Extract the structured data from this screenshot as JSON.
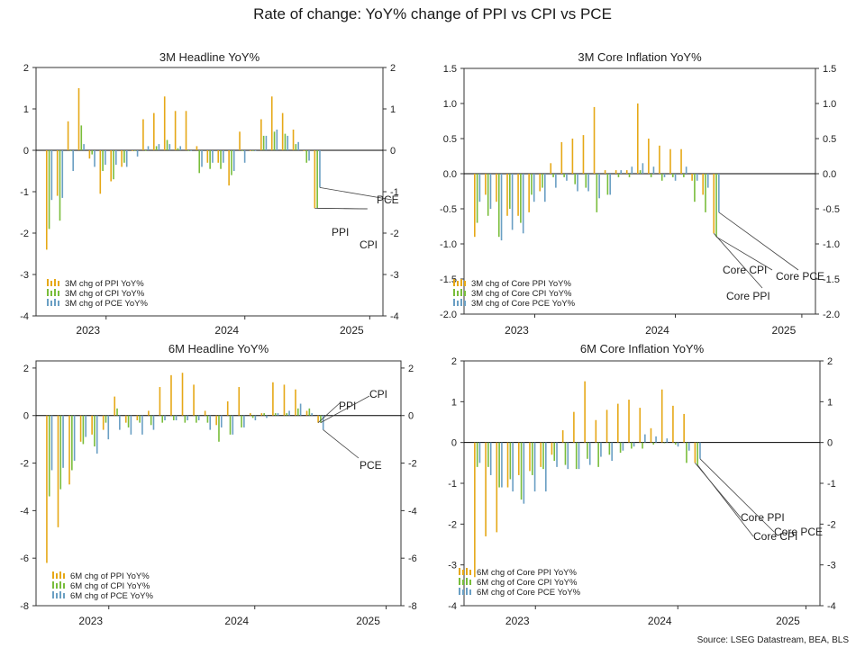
{
  "title": "Rate of change: YoY% change of PPI vs CPI vs PCE",
  "source": "Source: LSEG Datastream, BEA, BLS",
  "colors": {
    "ppi": "#e6a817",
    "cpi": "#79bd3b",
    "pce": "#6a9fc4",
    "axis": "#333333"
  },
  "chart_data": [
    {
      "type": "bar",
      "title": "3M Headline YoY%",
      "ylim": [
        -4,
        2
      ],
      "yticks": [
        2,
        1,
        0,
        -1,
        -2,
        -3,
        -4
      ],
      "ytick_labels": [
        "2",
        "1",
        "0",
        "-1",
        "-2",
        "-3",
        "-4"
      ],
      "xlabels": [
        "2023",
        "2024",
        "2025"
      ],
      "categories": [
        "Oct-22",
        "Nov-22",
        "Dec-22",
        "Jan-23",
        "Feb-23",
        "Mar-23",
        "Apr-23",
        "May-23",
        "Jun-23",
        "Jul-23",
        "Aug-23",
        "Sep-23",
        "Oct-23",
        "Nov-23",
        "Dec-23",
        "Jan-24",
        "Feb-24",
        "Mar-24",
        "Apr-24",
        "May-24",
        "Jun-24",
        "Jul-24",
        "Aug-24",
        "Sep-24",
        "Oct-24",
        "Nov-24",
        "Dec-24",
        "Jan-25",
        "Feb-25",
        "Mar-25",
        "Apr-25"
      ],
      "series": [
        {
          "name": "3M chg of PPI YoY%",
          "values": [
            -2.4,
            -1.1,
            0.7,
            1.5,
            -0.2,
            -1.05,
            -0.75,
            -0.4,
            0,
            0.75,
            0.9,
            1.3,
            0.95,
            0.95,
            0.1,
            -0.3,
            -0.3,
            -0.85,
            0.45,
            0,
            0.75,
            1.3,
            0.9,
            0.5,
            0,
            -1.4,
            null,
            null,
            null,
            null,
            null
          ]
        },
        {
          "name": "3M chg of CPI YoY%",
          "values": [
            -1.9,
            -1.7,
            0,
            0.6,
            -0.1,
            -0.5,
            -0.7,
            -0.3,
            0,
            0,
            0.1,
            0.25,
            0.05,
            0,
            -0.55,
            -0.45,
            -0.45,
            -0.6,
            0,
            0,
            0.35,
            0.45,
            0.4,
            0.15,
            -0.3,
            -1.4,
            null,
            null,
            null,
            null,
            null
          ]
        },
        {
          "name": "3M chg of PCE YoY%",
          "values": [
            -1.2,
            -1.15,
            -0.5,
            0.15,
            -0.4,
            -0.35,
            -0.35,
            -0.4,
            -0.15,
            0.1,
            0.15,
            0.15,
            0.1,
            0,
            -0.4,
            -0.3,
            -0.3,
            -0.5,
            -0.3,
            0,
            0.35,
            0.5,
            0.35,
            0.2,
            -0.25,
            -0.9,
            null,
            null,
            null,
            null,
            null
          ]
        }
      ],
      "annotations": [
        {
          "text": "PCE",
          "series": "3M chg of PCE YoY%",
          "index": 25
        },
        {
          "text": "PPI",
          "series": "3M chg of PPI YoY%",
          "index": 25
        },
        {
          "text": "CPI",
          "series": "3M chg of CPI YoY%",
          "index": 25
        }
      ]
    },
    {
      "type": "bar",
      "title": "3M Core Inflation YoY%",
      "ylim": [
        -2,
        1.5
      ],
      "yticks": [
        1.5,
        1,
        0.5,
        0,
        -0.5,
        -1,
        -1.5,
        -2
      ],
      "ytick_labels": [
        "1.5",
        "1.0",
        "0.5",
        "0.0",
        "-0.5",
        "-1.0",
        "-1.5",
        "-2.0"
      ],
      "xlabels": [
        "2023",
        "2024",
        "2025"
      ],
      "categories": [
        "Oct-22",
        "Nov-22",
        "Dec-22",
        "Jan-23",
        "Feb-23",
        "Mar-23",
        "Apr-23",
        "May-23",
        "Jun-23",
        "Jul-23",
        "Aug-23",
        "Sep-23",
        "Oct-23",
        "Nov-23",
        "Dec-23",
        "Jan-24",
        "Feb-24",
        "Mar-24",
        "Apr-24",
        "May-24",
        "Jun-24",
        "Jul-24",
        "Aug-24",
        "Sep-24",
        "Oct-24",
        "Nov-24",
        "Dec-24",
        "Jan-25",
        "Feb-25",
        "Mar-25",
        "Apr-25"
      ],
      "series": [
        {
          "name": "3M chg of Core PPI YoY%",
          "values": [
            -0.9,
            -0.3,
            -0.4,
            -0.6,
            -0.6,
            -0.55,
            -0.25,
            0.15,
            0.45,
            0.5,
            0.55,
            0.95,
            0.05,
            0.05,
            0.05,
            1.0,
            0.5,
            0.4,
            0.35,
            0.35,
            -0.1,
            -0.3,
            -0.85,
            null,
            null,
            null,
            null,
            null,
            null,
            null,
            null
          ]
        },
        {
          "name": "3M chg of Core CPI YoY%",
          "values": [
            -0.7,
            -0.6,
            -0.9,
            -0.5,
            -0.7,
            -0.3,
            -0.2,
            -0.05,
            -0.05,
            -0.15,
            -0.2,
            -0.55,
            -0.3,
            -0.05,
            -0.05,
            0.05,
            -0.05,
            -0.1,
            -0.05,
            -0.05,
            -0.4,
            -0.55,
            -0.9,
            null,
            null,
            null,
            null,
            null,
            null,
            null,
            null
          ]
        },
        {
          "name": "3M chg of Core PCE YoY%",
          "values": [
            -0.4,
            -0.5,
            -0.95,
            -0.8,
            -0.85,
            -0.4,
            -0.4,
            -0.2,
            -0.1,
            -0.25,
            -0.25,
            -0.35,
            -0.3,
            0.05,
            0.1,
            0.15,
            0.1,
            -0.05,
            -0.1,
            0.1,
            -0.1,
            -0.2,
            -0.55,
            null,
            null,
            null,
            null,
            null,
            null,
            null,
            null
          ]
        }
      ],
      "annotations": [
        {
          "text": "Core CPI",
          "series": "3M chg of Core CPI YoY%",
          "index": 22
        },
        {
          "text": "Core PCE",
          "series": "3M chg of Core PCE YoY%",
          "index": 22
        },
        {
          "text": "Core PPI",
          "series": "3M chg of Core PPI YoY%",
          "index": 22
        }
      ]
    },
    {
      "type": "bar",
      "title": "6M Headline YoY%",
      "ylim": [
        -8,
        2.3
      ],
      "yticks": [
        2,
        0,
        -2,
        -4,
        -6,
        -8
      ],
      "ytick_labels": [
        "2",
        "0",
        "-2",
        "-4",
        "-6",
        "-8"
      ],
      "xlabels": [
        "2023",
        "2024",
        "2025"
      ],
      "categories": [
        "Oct-22",
        "Nov-22",
        "Dec-22",
        "Jan-23",
        "Feb-23",
        "Mar-23",
        "Apr-23",
        "May-23",
        "Jun-23",
        "Jul-23",
        "Aug-23",
        "Sep-23",
        "Oct-23",
        "Nov-23",
        "Dec-23",
        "Jan-24",
        "Feb-24",
        "Mar-24",
        "Apr-24",
        "May-24",
        "Jun-24",
        "Jul-24",
        "Aug-24",
        "Sep-24",
        "Oct-24",
        "Nov-24",
        "Dec-24",
        "Jan-25",
        "Feb-25",
        "Mar-25",
        "Apr-25"
      ],
      "series": [
        {
          "name": "6M chg of PPI YoY%",
          "values": [
            -6.2,
            -4.7,
            -2.9,
            -1.1,
            -0.8,
            -0.6,
            0.8,
            -0.3,
            -0.2,
            0.2,
            1.2,
            1.7,
            1.8,
            1.3,
            0.2,
            -0.4,
            0.6,
            1.2,
            0.1,
            0.1,
            1.4,
            1.3,
            1.1,
            0.2,
            -0.3,
            null,
            null,
            null,
            null,
            null,
            null
          ]
        },
        {
          "name": "6M chg of CPI YoY%",
          "values": [
            -3.4,
            -3.1,
            -2.3,
            -1.2,
            -1.3,
            -0.3,
            0.3,
            -0.5,
            -0.3,
            -0.4,
            -0.3,
            -0.2,
            -0.3,
            -0.3,
            -0.3,
            -1.1,
            -0.8,
            -0.5,
            -0.1,
            0.1,
            0.1,
            0.1,
            0.3,
            0.3,
            -0.3,
            null,
            null,
            null,
            null,
            null,
            null
          ]
        },
        {
          "name": "6M chg of PCE YoY%",
          "values": [
            -2.3,
            -2.2,
            -1.9,
            -0.9,
            -1.6,
            -1.0,
            -0.6,
            -0.8,
            -0.8,
            -0.6,
            -0.2,
            -0.2,
            -0.2,
            -0.2,
            -0.6,
            -0.5,
            -0.8,
            -0.5,
            -0.2,
            -0.1,
            0.1,
            0.2,
            0.5,
            0.1,
            -0.6,
            null,
            null,
            null,
            null,
            null,
            null
          ]
        }
      ],
      "annotations": [
        {
          "text": "PPI",
          "series": "6M chg of PPI YoY%",
          "index": 24
        },
        {
          "text": "CPI",
          "series": "6M chg of CPI YoY%",
          "index": 24
        },
        {
          "text": "PCE",
          "series": "6M chg of PCE YoY%",
          "index": 24
        }
      ]
    },
    {
      "type": "bar",
      "title": "6M Core Inflation YoY%",
      "ylim": [
        -4,
        2
      ],
      "yticks": [
        2,
        1,
        0,
        -1,
        -2,
        -3,
        -4
      ],
      "ytick_labels": [
        "2",
        "1",
        "0",
        "-1",
        "-2",
        "-3",
        "-4"
      ],
      "xlabels": [
        "2023",
        "2024",
        "2025"
      ],
      "categories": [
        "Oct-22",
        "Nov-22",
        "Dec-22",
        "Jan-23",
        "Feb-23",
        "Mar-23",
        "Apr-23",
        "May-23",
        "Jun-23",
        "Jul-23",
        "Aug-23",
        "Sep-23",
        "Oct-23",
        "Nov-23",
        "Dec-23",
        "Jan-24",
        "Feb-24",
        "Mar-24",
        "Apr-24",
        "May-24",
        "Jun-24",
        "Jul-24",
        "Aug-24",
        "Sep-24",
        "Oct-24",
        "Nov-24",
        "Dec-24",
        "Jan-25",
        "Feb-25",
        "Mar-25",
        "Apr-25"
      ],
      "series": [
        {
          "name": "6M chg of Core PPI YoY%",
          "values": [
            -3.3,
            -2.3,
            -2.2,
            -1.1,
            -0.8,
            -0.7,
            -0.6,
            -0.3,
            0.3,
            0.75,
            1.5,
            0.55,
            0.8,
            0.95,
            1.05,
            0.85,
            0.35,
            1.3,
            0.9,
            0.7,
            -0.5,
            null,
            null,
            null,
            null,
            null,
            null,
            null,
            null,
            null,
            null
          ]
        },
        {
          "name": "6M chg of Core CPI YoY%",
          "values": [
            -0.6,
            -0.6,
            -1.1,
            -0.9,
            -1.4,
            -0.8,
            -0.65,
            -0.45,
            -0.55,
            -0.65,
            -0.4,
            -0.6,
            -0.3,
            -0.25,
            -0.15,
            -0.15,
            -0.05,
            0,
            -0.05,
            -0.5,
            -0.55,
            null,
            null,
            null,
            null,
            null,
            null,
            null,
            null,
            null,
            null
          ]
        },
        {
          "name": "6M chg of Core PCE YoY%",
          "values": [
            -0.5,
            -0.8,
            -1.1,
            -1.2,
            -1.5,
            -1.2,
            -1.2,
            -0.6,
            -0.65,
            -0.65,
            -0.55,
            -0.35,
            -0.45,
            -0.2,
            -0.1,
            0.2,
            0.15,
            0.1,
            -0.1,
            -0.2,
            -0.4,
            null,
            null,
            null,
            null,
            null,
            null,
            null,
            null,
            null,
            null
          ]
        }
      ],
      "annotations": [
        {
          "text": "Core PPI",
          "series": "6M chg of Core PPI YoY%",
          "index": 20
        },
        {
          "text": "Core CPI",
          "series": "6M chg of Core CPI YoY%",
          "index": 20
        },
        {
          "text": "Core PCE",
          "series": "6M chg of Core PCE YoY%",
          "index": 20
        }
      ]
    }
  ]
}
